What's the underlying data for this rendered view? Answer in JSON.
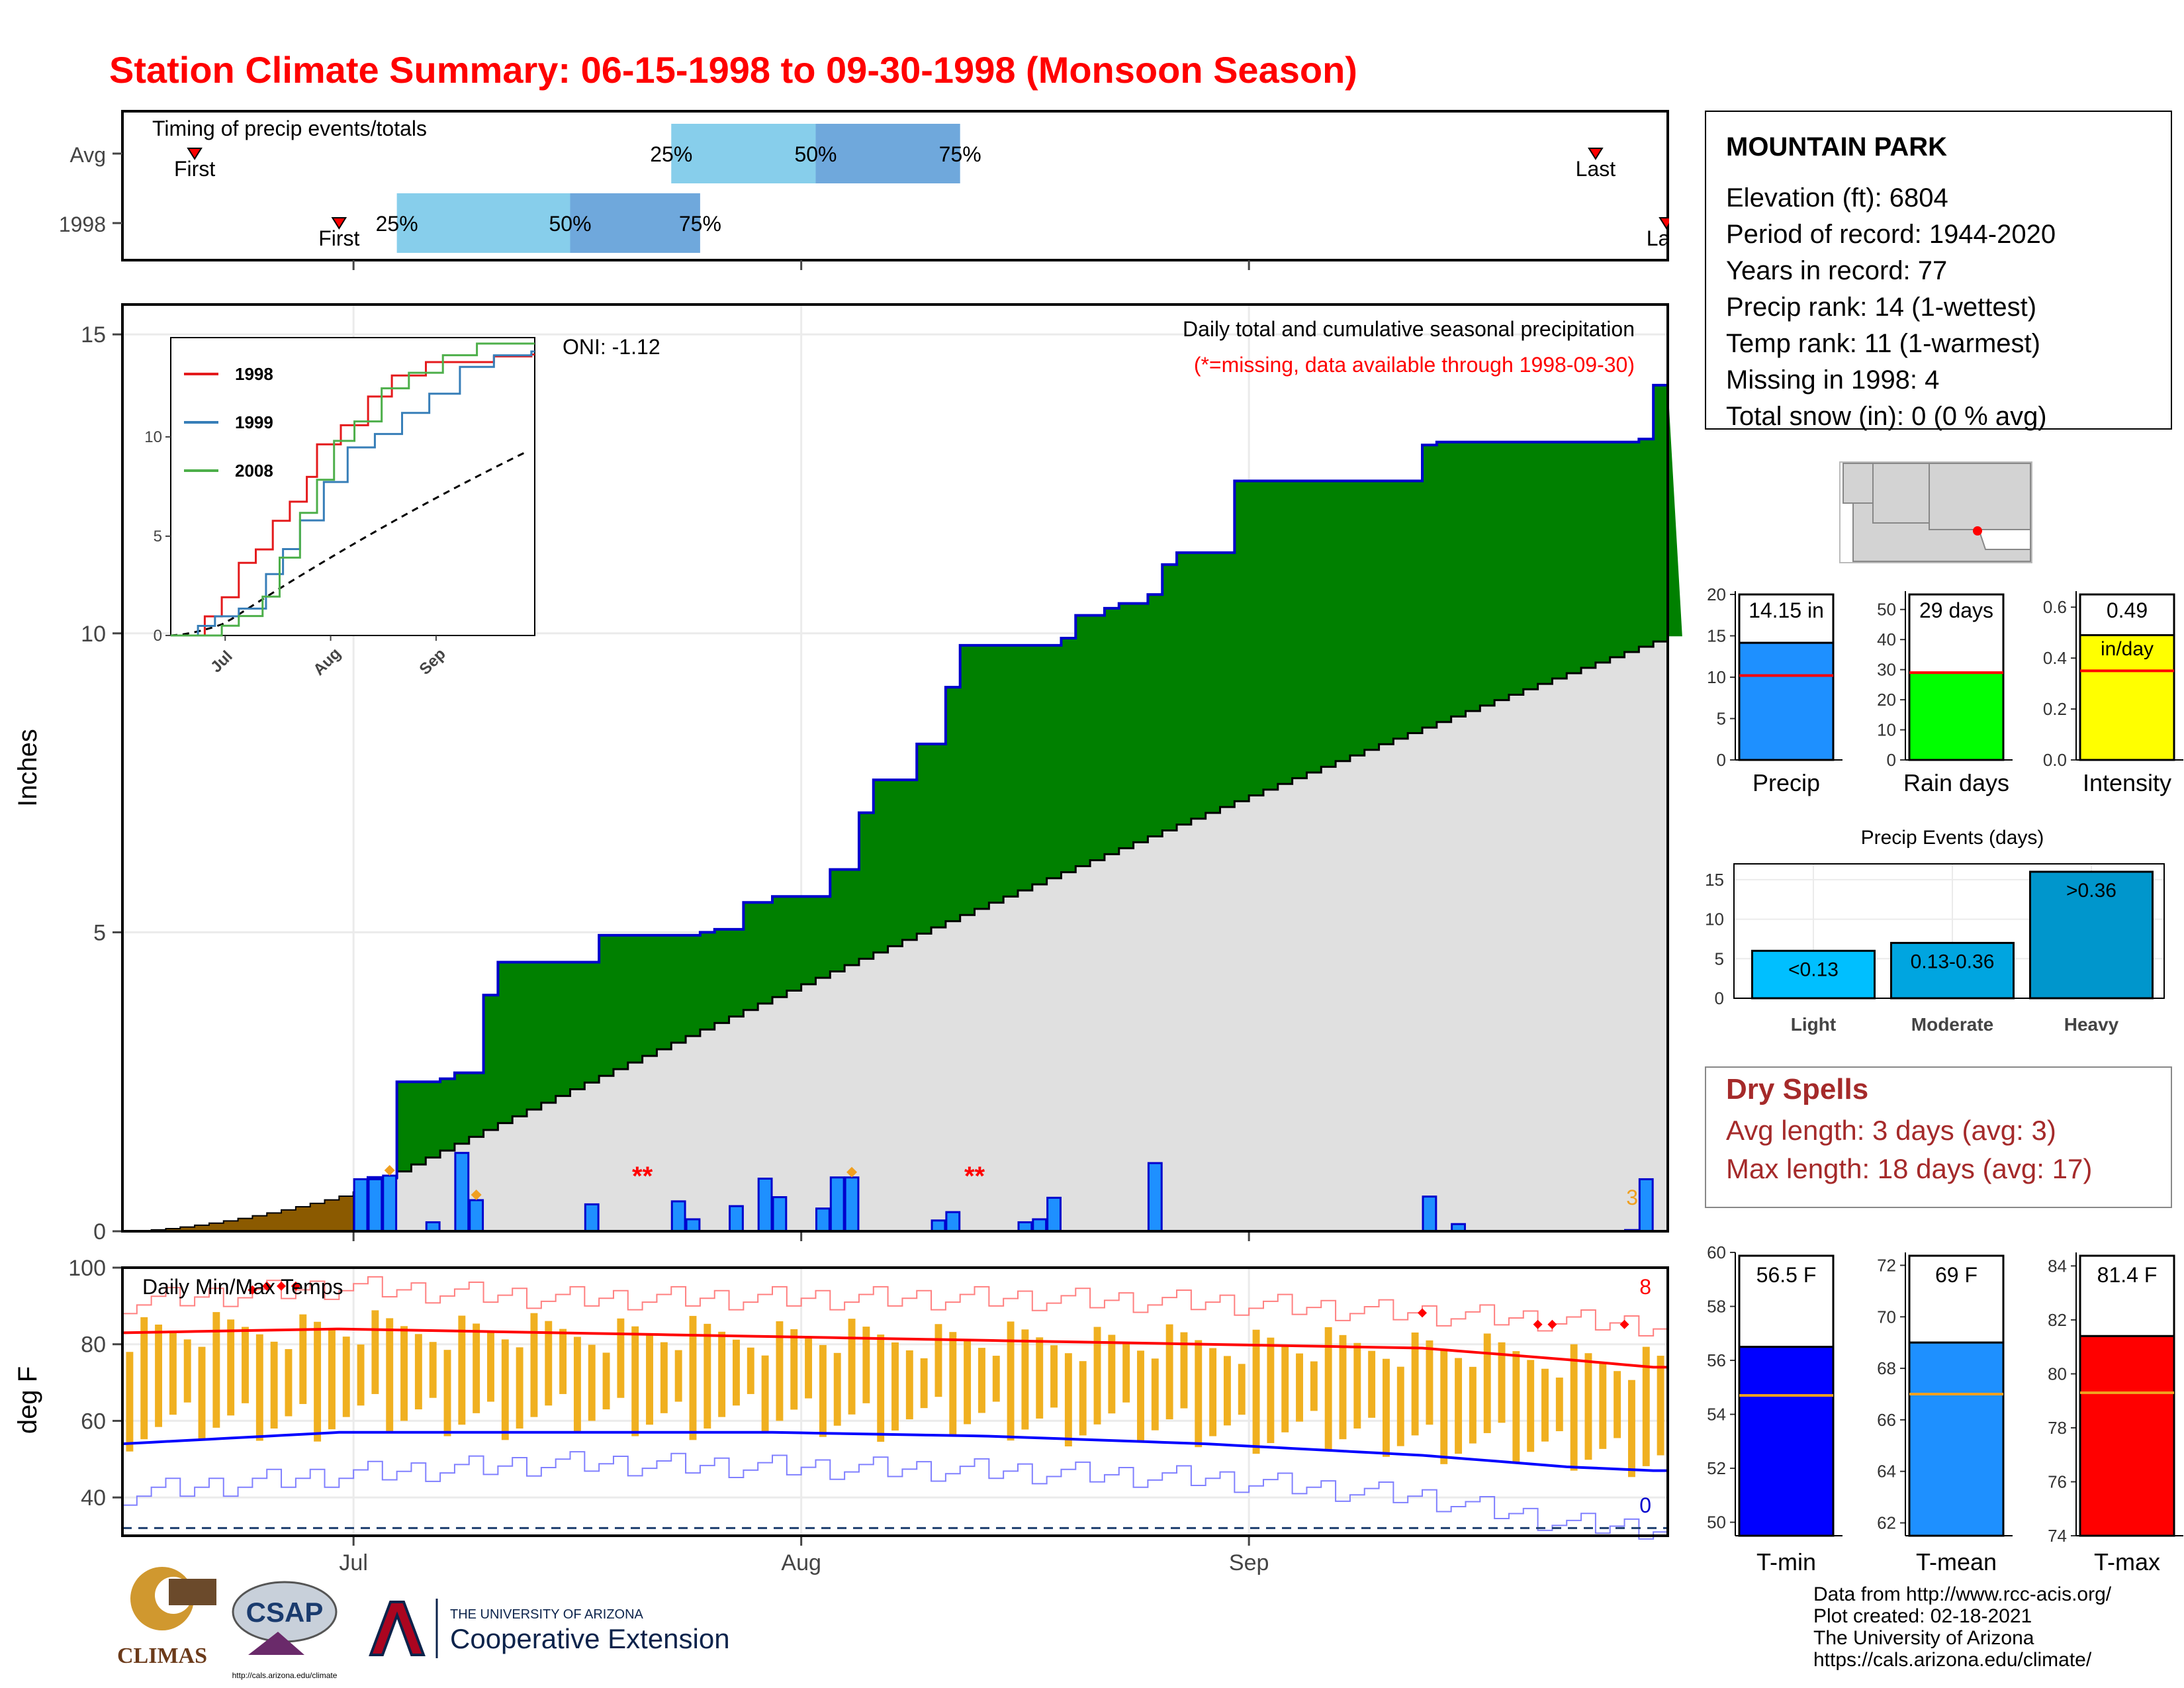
{
  "title": "Station Climate Summary: 06-15-1998 to 09-30-1998 (Monsoon Season)",
  "colors": {
    "title": "#ff0000",
    "observed_fill": "#008000",
    "avg_fill": "#e0e0e0",
    "pre_season": "#8b5a00",
    "bars": "#1e90ff",
    "bar_edge": "#0000cd",
    "tmax_line": "#ff0000",
    "tmin_line": "#0000ff",
    "temp_bars": "#f0b020",
    "dry_spells": "#a52a2a"
  },
  "station": {
    "name": "MOUNTAIN PARK",
    "lines": [
      "Elevation (ft): 6804",
      "Period of record: 1944-2020",
      "Years in record: 77",
      "Precip rank: 14 (1-wettest)",
      "Temp rank: 11 (1-warmest)",
      "Missing in 1998: 4",
      "Total snow (in): 0 (0 % avg)"
    ]
  },
  "map": {
    "icon": "arizona-locator-map",
    "dot_color": "#ff0000"
  },
  "dry_spells": {
    "title": "Dry Spells",
    "avg_length": "Avg length: 3 days (avg: 3)",
    "max_length": "Max length: 18 days (avg: 17)"
  },
  "footer": {
    "lines": [
      "Data from http://www.rcc-acis.org/",
      "Plot created: 02-18-2021",
      "The University of Arizona",
      "https://cals.arizona.edu/climate/"
    ],
    "logo_climas": "CLIMAS",
    "logo_csap": "CSAP",
    "csap_url": "http://cals.arizona.edu/climate",
    "ua_small": "THE UNIVERSITY OF ARIZONA",
    "ua_big": "Cooperative Extension"
  },
  "chart_data": [
    {
      "type": "bar",
      "name": "timing",
      "subtitle": "Timing of precip events/totals",
      "categories": [
        "Avg",
        "1998"
      ],
      "x_range": [
        "06-15",
        "09-30"
      ],
      "rows": [
        {
          "label": "Avg",
          "first": "06-20",
          "q25": "07-23",
          "q50": "08-02",
          "q75": "08-12",
          "last": "09-25"
        },
        {
          "label": "1998",
          "first": "06-30",
          "q25": "07-04",
          "q50": "07-16",
          "q75": "07-25",
          "last": "09-30"
        }
      ],
      "marker_labels": {
        "first": "First",
        "last": "Last",
        "q25": "25%",
        "q50": "50%",
        "q75": "75%"
      },
      "colors": {
        "q25_q50": "#87ceeb",
        "q50_q75": "#6fa8dc",
        "marker": "#ff0000"
      }
    },
    {
      "type": "area",
      "name": "precipitation",
      "title": "Daily total and cumulative seasonal precipitation",
      "subtitle": "(*=missing, data available through 1998-09-30)",
      "ylabel": "Inches",
      "ylim": [
        0,
        15.5
      ],
      "yticks": [
        0,
        5,
        10,
        15
      ],
      "xticks": [
        "Jul",
        "Aug",
        "Sep"
      ],
      "oni": "ONI: -1.12",
      "missing_markers": [
        {
          "date": "07-21",
          "label": "**"
        },
        {
          "date": "08-13",
          "label": "**"
        }
      ],
      "annotation": "3",
      "cumulative_observed": [
        [
          0,
          0
        ],
        [
          16,
          0
        ],
        [
          17,
          0.9
        ],
        [
          18,
          0.9
        ],
        [
          19,
          2.5
        ],
        [
          21,
          2.5
        ],
        [
          22,
          2.55
        ],
        [
          23,
          2.65
        ],
        [
          24,
          2.65
        ],
        [
          25,
          3.95
        ],
        [
          26,
          4.5
        ],
        [
          32,
          4.5
        ],
        [
          33,
          4.95
        ],
        [
          39,
          4.95
        ],
        [
          40,
          5.0
        ],
        [
          41,
          5.05
        ],
        [
          42,
          5.05
        ],
        [
          43,
          5.5
        ],
        [
          44,
          5.5
        ],
        [
          45,
          5.6
        ],
        [
          48,
          5.6
        ],
        [
          49,
          6.05
        ],
        [
          50,
          6.05
        ],
        [
          51,
          7.0
        ],
        [
          52,
          7.55
        ],
        [
          54,
          7.55
        ],
        [
          55,
          8.15
        ],
        [
          56,
          8.15
        ],
        [
          57,
          9.1
        ],
        [
          58,
          9.8
        ],
        [
          64,
          9.8
        ],
        [
          65,
          9.92
        ],
        [
          66,
          10.3
        ],
        [
          67,
          10.3
        ],
        [
          68,
          10.42
        ],
        [
          69,
          10.5
        ],
        [
          70,
          10.5
        ],
        [
          71,
          10.65
        ],
        [
          72,
          11.15
        ],
        [
          73,
          11.35
        ],
        [
          76,
          11.35
        ],
        [
          77,
          12.55
        ],
        [
          89,
          12.55
        ],
        [
          90,
          13.15
        ],
        [
          91,
          13.2
        ],
        [
          104,
          13.2
        ],
        [
          105,
          13.25
        ],
        [
          106,
          14.15
        ]
      ],
      "cumulative_avg_end": 9.95,
      "pre_season_avg_end": 0.65,
      "daily_bars": [
        {
          "day": 16,
          "value": 0.87
        },
        {
          "day": 17,
          "value": 0.87
        },
        {
          "day": 18,
          "value": 0.93
        },
        {
          "day": 21,
          "value": 0.15
        },
        {
          "day": 23,
          "value": 1.31
        },
        {
          "day": 24,
          "value": 0.52
        },
        {
          "day": 32,
          "value": 0.45
        },
        {
          "day": 38,
          "value": 0.5
        },
        {
          "day": 39,
          "value": 0.2
        },
        {
          "day": 42,
          "value": 0.42
        },
        {
          "day": 44,
          "value": 0.88
        },
        {
          "day": 45,
          "value": 0.57
        },
        {
          "day": 48,
          "value": 0.38
        },
        {
          "day": 49,
          "value": 0.9
        },
        {
          "day": 50,
          "value": 0.9
        },
        {
          "day": 56,
          "value": 0.18
        },
        {
          "day": 57,
          "value": 0.32
        },
        {
          "day": 62,
          "value": 0.15
        },
        {
          "day": 63,
          "value": 0.2
        },
        {
          "day": 64,
          "value": 0.56
        },
        {
          "day": 71,
          "value": 1.14
        },
        {
          "day": 90,
          "value": 0.58
        },
        {
          "day": 92,
          "value": 0.12
        },
        {
          "day": 104,
          "value": 0.02
        },
        {
          "day": 105,
          "value": 0.87
        }
      ],
      "inset": {
        "xticks": [
          "Jul",
          "Aug",
          "Sep"
        ],
        "yticks": [
          0,
          5,
          10
        ],
        "series": [
          {
            "name": "1998",
            "color": "#e41a1c",
            "end": 14.15
          },
          {
            "name": "1999",
            "color": "#377eb8",
            "end": 14.3
          },
          {
            "name": "2008",
            "color": "#4daf4a",
            "end": 14.7
          }
        ],
        "avg_style": "dashed"
      }
    },
    {
      "type": "line",
      "name": "temperature",
      "title": "Daily Min/Max Temps",
      "ylabel": "deg F",
      "ylim": [
        30,
        100
      ],
      "yticks": [
        40,
        60,
        80,
        100
      ],
      "xticks": [
        "Jul",
        "Aug",
        "Sep"
      ],
      "annotation_top": "8",
      "annotation_bottom": "0",
      "avg_max": [
        [
          0,
          83
        ],
        [
          15,
          84
        ],
        [
          30,
          83
        ],
        [
          45,
          82
        ],
        [
          60,
          81
        ],
        [
          75,
          80
        ],
        [
          90,
          79
        ],
        [
          100,
          76
        ],
        [
          106,
          74
        ]
      ],
      "avg_min": [
        [
          0,
          54
        ],
        [
          15,
          57
        ],
        [
          30,
          57
        ],
        [
          45,
          57
        ],
        [
          60,
          56
        ],
        [
          75,
          54
        ],
        [
          90,
          51
        ],
        [
          100,
          48
        ],
        [
          106,
          47
        ]
      ],
      "record_max": [
        [
          0,
          91
        ],
        [
          15,
          95
        ],
        [
          30,
          92
        ],
        [
          60,
          92
        ],
        [
          75,
          91
        ],
        [
          90,
          88
        ],
        [
          106,
          85
        ]
      ],
      "record_min": [
        [
          0,
          41
        ],
        [
          15,
          46
        ],
        [
          30,
          49
        ],
        [
          60,
          47
        ],
        [
          75,
          45
        ],
        [
          90,
          40
        ],
        [
          100,
          33
        ],
        [
          106,
          32
        ]
      ],
      "freeze_line": 32
    },
    {
      "type": "bar",
      "name": "precip-summary",
      "categories": [
        "Precip",
        "Rain days",
        "Intensity"
      ],
      "panels": [
        {
          "label": "Precip",
          "value": 14.15,
          "display": "14.15 in",
          "avg": 10.2,
          "ylim": [
            0,
            20
          ],
          "yticks": [
            0,
            5,
            10,
            15,
            20
          ],
          "color": "#1e90ff"
        },
        {
          "label": "Rain days",
          "value": 29,
          "display": "29 days",
          "avg": 29,
          "ylim": [
            0,
            55
          ],
          "yticks": [
            0,
            10,
            20,
            30,
            40,
            50
          ],
          "color": "#00ff00"
        },
        {
          "label": "Intensity",
          "value": 0.49,
          "display": "0.49",
          "unit": "in/day",
          "avg": 0.35,
          "ylim": [
            0,
            0.65
          ],
          "yticks": [
            0.0,
            0.2,
            0.4,
            0.6
          ],
          "color": "#ffff00"
        }
      ]
    },
    {
      "type": "bar",
      "name": "precip-events",
      "title": "Precip Events (days)",
      "categories": [
        "Light",
        "Moderate",
        "Heavy"
      ],
      "values": [
        6,
        7,
        16
      ],
      "bar_labels": [
        "<0.13",
        "0.13-0.36",
        ">0.36"
      ],
      "ylim": [
        0,
        17
      ],
      "yticks": [
        0,
        5,
        10,
        15
      ],
      "colors": [
        "#00bfff",
        "#00a5e0",
        "#0096cc"
      ]
    },
    {
      "type": "bar",
      "name": "temp-summary",
      "categories": [
        "T-min",
        "T-mean",
        "T-max"
      ],
      "panels": [
        {
          "label": "T-min",
          "value": 56.5,
          "display": "56.5 F",
          "avg": 54.7,
          "ylim": [
            49.5,
            60
          ],
          "yticks": [
            50,
            52,
            54,
            56,
            58,
            60
          ],
          "color": "#0000ff"
        },
        {
          "label": "T-mean",
          "value": 69,
          "display": "69 F",
          "avg": 67,
          "ylim": [
            61.5,
            72.5
          ],
          "yticks": [
            62,
            64,
            66,
            68,
            70,
            72
          ],
          "color": "#1e90ff"
        },
        {
          "label": "T-max",
          "value": 81.4,
          "display": "81.4 F",
          "avg": 79.3,
          "ylim": [
            74,
            84.5
          ],
          "yticks": [
            74,
            76,
            78,
            80,
            82,
            84
          ],
          "color": "#ff0000"
        }
      ]
    }
  ]
}
